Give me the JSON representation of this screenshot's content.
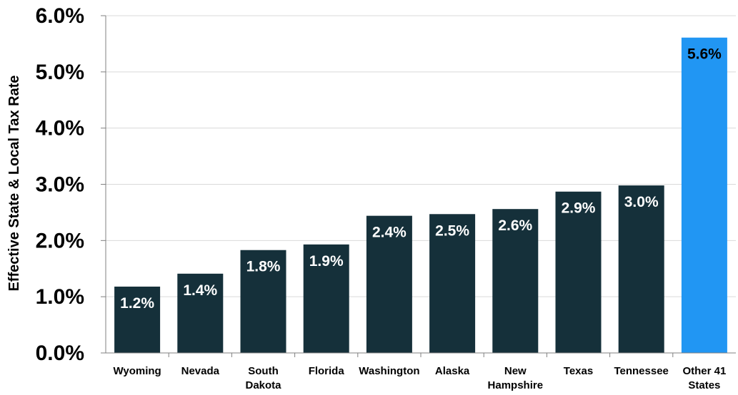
{
  "chart_data": {
    "type": "bar",
    "title": "",
    "xlabel": "",
    "ylabel": "Effective State & Local Tax Rate",
    "ylim": [
      0,
      0.06
    ],
    "y_ticks": [
      "0.0%",
      "1.0%",
      "2.0%",
      "3.0%",
      "4.0%",
      "5.0%",
      "6.0%"
    ],
    "grid": true,
    "categories": [
      [
        "Wyoming"
      ],
      [
        "Nevada"
      ],
      [
        "South",
        "Dakota"
      ],
      [
        "Florida"
      ],
      [
        "Washington"
      ],
      [
        "Alaska"
      ],
      [
        "New",
        "Hampshire"
      ],
      [
        "Texas"
      ],
      [
        "Tennessee"
      ],
      [
        "Other 41",
        "States"
      ]
    ],
    "values": [
      0.0118,
      0.0141,
      0.0183,
      0.0193,
      0.0244,
      0.0247,
      0.0256,
      0.0287,
      0.0298,
      0.0561
    ],
    "value_labels": [
      "1.2%",
      "1.4%",
      "1.8%",
      "1.9%",
      "2.4%",
      "2.5%",
      "2.6%",
      "2.9%",
      "3.0%",
      "5.6%"
    ],
    "colors": {
      "default_bar": "#15303a",
      "highlight_bar": "#2196f3",
      "default_label": "#ffffff",
      "highlight_label": "#000000",
      "gridline": "#d9d9d9",
      "axis": "#808080"
    },
    "highlight_index": 9
  }
}
